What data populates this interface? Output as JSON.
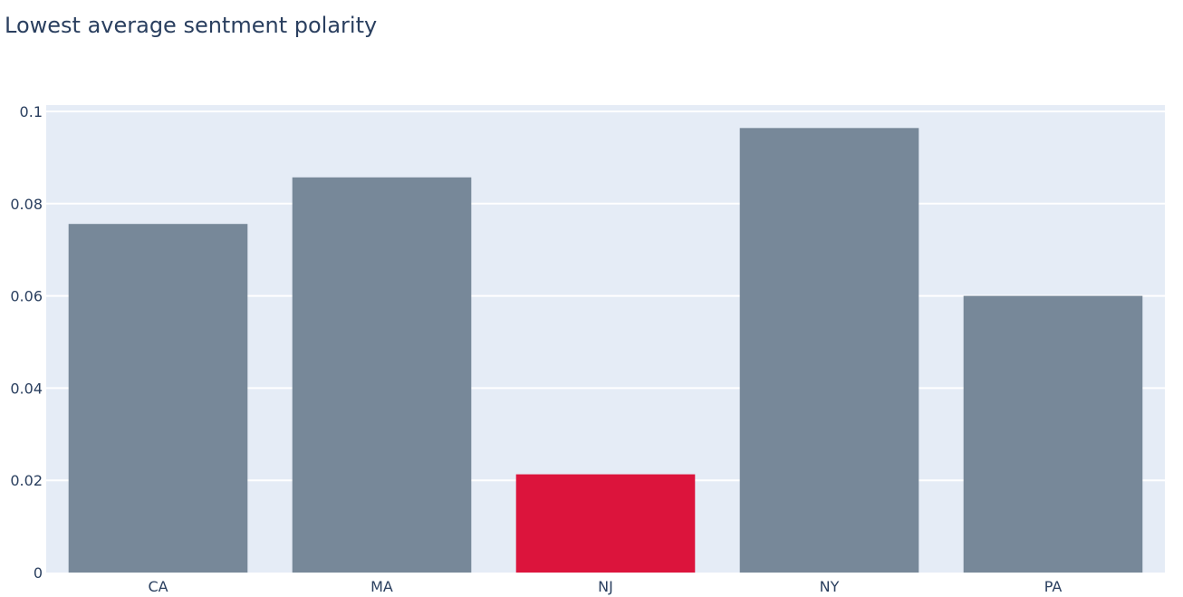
{
  "chart_data": {
    "type": "bar",
    "title": "Lowest average sentment polarity",
    "xlabel": "",
    "ylabel": "",
    "categories": [
      "CA",
      "MA",
      "NJ",
      "NY",
      "PA"
    ],
    "values": [
      0.0756,
      0.0857,
      0.0213,
      0.0964,
      0.06
    ],
    "highlight_index": 2,
    "ylim": [
      0,
      0.1
    ],
    "yticks": [
      0,
      0.02,
      0.04,
      0.06,
      0.08,
      0.1
    ],
    "ytick_labels": [
      "0",
      "0.02",
      "0.04",
      "0.06",
      "0.08",
      "0.1"
    ],
    "grid": true,
    "legend": "none",
    "colors": {
      "bar": "#778899",
      "highlight": "#dc143c",
      "plot_bg": "#e5ecf6",
      "grid": "#ffffff",
      "text": "#2a3f5f"
    }
  }
}
